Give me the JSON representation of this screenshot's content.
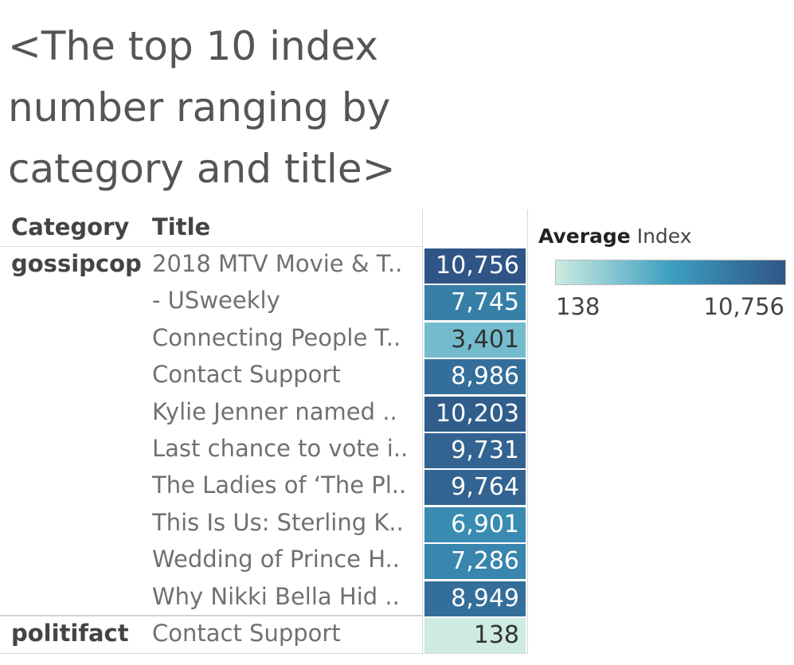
{
  "title": "<The top 10 index number ranging by category and title>",
  "headers": {
    "category": "Category",
    "title": "Title"
  },
  "legend": {
    "title_bold": "Average",
    "title_rest": "Index",
    "min_label": "138",
    "max_label": "10,756",
    "colors": [
      "#cdebe1",
      "#3d9fc1",
      "#2f5586"
    ]
  },
  "chart_data": {
    "type": "heatmap",
    "title": "<The top 10 index number ranging by category and title>",
    "measure": "Average Index",
    "color_range": [
      138,
      10756
    ],
    "rows": [
      {
        "category": "gossipcop",
        "title": "2018 MTV Movie & T..",
        "value": 10756,
        "label": "10,756"
      },
      {
        "category": "",
        "title": "- USweekly",
        "value": 7745,
        "label": "7,745"
      },
      {
        "category": "",
        "title": "Connecting People T..",
        "value": 3401,
        "label": "3,401"
      },
      {
        "category": "",
        "title": "Contact Support",
        "value": 8986,
        "label": "8,986"
      },
      {
        "category": "",
        "title": "Kylie Jenner named ..",
        "value": 10203,
        "label": "10,203"
      },
      {
        "category": "",
        "title": "Last chance to vote i..",
        "value": 9731,
        "label": "9,731"
      },
      {
        "category": "",
        "title": "The Ladies of ‘The Pl..",
        "value": 9764,
        "label": "9,764"
      },
      {
        "category": "",
        "title": "This Is Us: Sterling K..",
        "value": 6901,
        "label": "6,901"
      },
      {
        "category": "",
        "title": "Wedding of Prince H..",
        "value": 7286,
        "label": "7,286"
      },
      {
        "category": "",
        "title": "Why Nikki Bella Hid ..",
        "value": 8949,
        "label": "8,949"
      },
      {
        "category": "politifact",
        "title": "Contact Support",
        "value": 138,
        "label": "138"
      }
    ]
  }
}
